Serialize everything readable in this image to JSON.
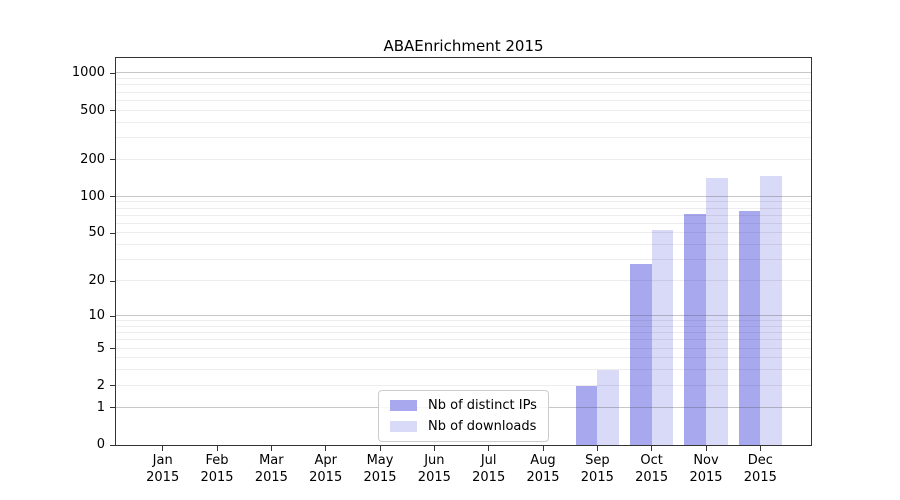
{
  "chart_data": {
    "type": "bar",
    "title": "ABAEnrichment 2015",
    "categories": [
      "Jan",
      "Feb",
      "Mar",
      "Apr",
      "May",
      "Jun",
      "Jul",
      "Aug",
      "Sep",
      "Oct",
      "Nov",
      "Dec"
    ],
    "year_label": "2015",
    "series": [
      {
        "name": "Nb of distinct IPs",
        "color": "#a8a8ef",
        "values": [
          0,
          0,
          0,
          0,
          0,
          0,
          0,
          0,
          2,
          28,
          72,
          76
        ]
      },
      {
        "name": "Nb of downloads",
        "color": "#d9d9f8",
        "values": [
          0,
          0,
          0,
          0,
          0,
          0,
          0,
          0,
          3,
          53,
          141,
          147
        ]
      }
    ],
    "y_axis": {
      "scale": "log10(1+y)",
      "ticks": [
        0,
        1,
        2,
        5,
        10,
        20,
        50,
        100,
        200,
        500,
        1000
      ],
      "major_gridlines": [
        1,
        10,
        100,
        1000
      ],
      "minor_gridlines": [
        2,
        3,
        4,
        5,
        6,
        7,
        8,
        9,
        20,
        30,
        40,
        50,
        60,
        70,
        80,
        90,
        200,
        300,
        400,
        500,
        600,
        700,
        800,
        900
      ],
      "ymax": 1330,
      "major_grid_color": "rgba(70,70,70,0.30)",
      "minor_grid_color": "rgba(0,0,0,0.07)"
    },
    "legend": {
      "position": "lower-center-inside"
    },
    "grid": "on"
  }
}
